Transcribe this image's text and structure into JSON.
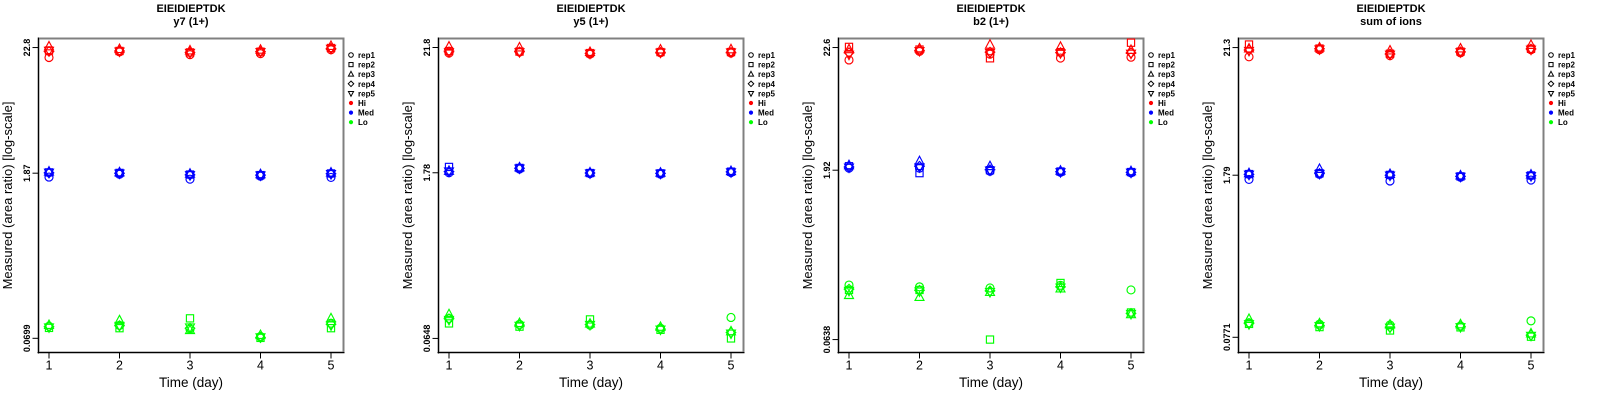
{
  "figure": {
    "background": "#ffffff",
    "box_color": "#808080",
    "axis_color": "#000000"
  },
  "legend": {
    "reps": [
      {
        "label": "rep1",
        "symbol": "circle"
      },
      {
        "label": "rep2",
        "symbol": "square"
      },
      {
        "label": "rep3",
        "symbol": "triangle-up"
      },
      {
        "label": "rep4",
        "symbol": "diamond"
      },
      {
        "label": "rep5",
        "symbol": "triangle-down"
      }
    ],
    "levels": [
      {
        "label": "Hi",
        "color": "#FF0000"
      },
      {
        "label": "Med",
        "color": "#0000FF"
      },
      {
        "label": "Lo",
        "color": "#00FF00"
      }
    ]
  },
  "chart_data": [
    {
      "type": "scatter",
      "title": "EIEIDIEPTDK",
      "subtitle": "y7 (1+)",
      "xlabel": "Time (day)",
      "ylabel": "Measured (area ratio) [log-scale]",
      "x": [
        1,
        2,
        3,
        4,
        5
      ],
      "xticklabels": [
        "1",
        "2",
        "3",
        "4",
        "5"
      ],
      "yticks": [
        22.8,
        1.87,
        0.0699
      ],
      "ytick_labels": [
        "22.8",
        "1.87",
        "0.0699"
      ],
      "ylim": [
        0.0527,
        27.3
      ],
      "yscale": "log",
      "legend_position": "right",
      "grid": false,
      "series": [
        {
          "name": "Hi",
          "color": "#FF0000",
          "days": [
            [
              18.7,
              21.5,
              23.3,
              21.1,
              21.4
            ],
            [
              20.9,
              21.3,
              22.1,
              21.3,
              21.1
            ],
            [
              19.8,
              20.7,
              21.5,
              20.7,
              20.5
            ],
            [
              20.2,
              21.0,
              21.8,
              21.0,
              20.9
            ],
            [
              21.8,
              22.6,
              23.5,
              22.4,
              22.3
            ]
          ]
        },
        {
          "name": "Med",
          "color": "#0000FF",
          "days": [
            [
              1.73,
              1.9,
              1.93,
              1.88,
              1.89
            ],
            [
              1.83,
              1.88,
              1.9,
              1.87,
              1.86
            ],
            [
              1.66,
              1.82,
              1.85,
              1.81,
              1.8
            ],
            [
              1.76,
              1.8,
              1.83,
              1.8,
              1.79
            ],
            [
              1.72,
              1.86,
              1.89,
              1.85,
              1.84
            ]
          ]
        },
        {
          "name": "Lo",
          "color": "#00FF00",
          "days": [
            [
              0.089,
              0.086,
              0.091,
              0.088,
              0.087
            ],
            [
              0.0905,
              0.0855,
              0.1,
              0.09,
              0.0895
            ],
            [
              0.0838,
              0.104,
              0.0822,
              0.0855,
              0.087
            ],
            [
              0.0725,
              0.0705,
              0.0745,
              0.071,
              0.0715
            ],
            [
              0.0945,
              0.0855,
              0.104,
              0.0925,
              0.0905
            ]
          ]
        }
      ]
    },
    {
      "type": "scatter",
      "title": "EIEIDIEPTDK",
      "subtitle": "y5 (1+)",
      "xlabel": "Time (day)",
      "ylabel": "Measured (area ratio) [log-scale]",
      "x": [
        1,
        2,
        3,
        4,
        5
      ],
      "xticklabels": [
        "1",
        "2",
        "3",
        "4",
        "5"
      ],
      "yticks": [
        21.8,
        1.78,
        0.0648
      ],
      "ytick_labels": [
        "21.8",
        "1.78",
        "0.0648"
      ],
      "ylim": [
        0.0489,
        26.1
      ],
      "yscale": "log",
      "legend_position": "right",
      "grid": false,
      "series": [
        {
          "name": "Hi",
          "color": "#FF0000",
          "days": [
            [
              19.5,
              20.3,
              22.2,
              20.0,
              19.9
            ],
            [
              19.9,
              20.1,
              21.8,
              20.0,
              19.9
            ],
            [
              19.1,
              19.5,
              19.9,
              19.4,
              19.3
            ],
            [
              19.6,
              19.9,
              20.9,
              19.8,
              19.7
            ],
            [
              19.5,
              19.9,
              21.0,
              19.8,
              19.8
            ]
          ]
        },
        {
          "name": "Med",
          "color": "#0000FF",
          "days": [
            [
              1.78,
              2.0,
              1.85,
              1.82,
              1.83
            ],
            [
              1.92,
              1.96,
              1.98,
              1.95,
              1.94
            ],
            [
              1.75,
              1.77,
              1.79,
              1.77,
              1.76
            ],
            [
              1.73,
              1.76,
              1.78,
              1.76,
              1.75
            ],
            [
              1.79,
              1.82,
              1.84,
              1.81,
              1.8
            ]
          ]
        },
        {
          "name": "Lo",
          "color": "#00FF00",
          "days": [
            [
              0.0965,
              0.0875,
              0.105,
              0.096,
              0.094
            ],
            [
              0.086,
              0.082,
              0.088,
              0.0845,
              0.0835
            ],
            [
              0.0845,
              0.0948,
              0.087,
              0.0855,
              0.085
            ],
            [
              0.0795,
              0.077,
              0.0815,
              0.078,
              0.0775
            ],
            [
              0.0985,
              0.0648,
              0.0745,
              0.073,
              0.0715
            ]
          ]
        }
      ]
    },
    {
      "type": "scatter",
      "title": "EIEIDIEPTDK",
      "subtitle": "b2 (1+)",
      "xlabel": "Time (day)",
      "ylabel": "Measured (area ratio) [log-scale]",
      "x": [
        1,
        2,
        3,
        4,
        5
      ],
      "xticklabels": [
        "1",
        "2",
        "3",
        "4",
        "5"
      ],
      "yticks": [
        22.6,
        1.92,
        0.0638
      ],
      "ytick_labels": [
        "22.6",
        "1.92",
        "0.0638"
      ],
      "ylim": [
        0.0492,
        27.1
      ],
      "yscale": "log",
      "legend_position": "right",
      "grid": false,
      "series": [
        {
          "name": "Hi",
          "color": "#FF0000",
          "days": [
            [
              17.6,
              22.9,
              21.8,
              20.4,
              19.6
            ],
            [
              20.9,
              21.7,
              22.2,
              21.3,
              21.1
            ],
            [
              19.8,
              18.2,
              23.9,
              20.6,
              20.3
            ],
            [
              18.3,
              20.6,
              22.9,
              20.4,
              20.2
            ],
            [
              18.6,
              24.9,
              21.5,
              20.3,
              20.0
            ]
          ]
        },
        {
          "name": "Med",
          "color": "#0000FF",
          "days": [
            [
              2.0,
              2.08,
              2.12,
              2.05,
              2.03
            ],
            [
              2.0,
              1.81,
              2.3,
              2.08,
              2.04
            ],
            [
              1.88,
              1.92,
              2.08,
              1.94,
              1.91
            ],
            [
              1.84,
              1.87,
              1.9,
              1.86,
              1.85
            ],
            [
              1.82,
              1.85,
              1.88,
              1.84,
              1.83
            ]
          ]
        },
        {
          "name": "Lo",
          "color": "#00FF00",
          "days": [
            [
              0.191,
              0.173,
              0.156,
              0.176,
              0.17
            ],
            [
              0.184,
              0.173,
              0.15,
              0.172,
              0.168
            ],
            [
              0.18,
              0.0638,
              0.166,
              0.17,
              0.166
            ],
            [
              0.19,
              0.199,
              0.178,
              0.184,
              0.182
            ],
            [
              0.173,
              0.11,
              0.106,
              0.108,
              0.107
            ]
          ]
        }
      ]
    },
    {
      "type": "scatter",
      "title": "EIEIDIEPTDK",
      "subtitle": "sum of ions",
      "xlabel": "Time (day)",
      "ylabel": "Measured (area ratio) [log-scale]",
      "x": [
        1,
        2,
        3,
        4,
        5
      ],
      "xticklabels": [
        "1",
        "2",
        "3",
        "4",
        "5"
      ],
      "yticks": [
        21.3,
        1.79,
        0.0771
      ],
      "ytick_labels": [
        "21.3",
        "1.79",
        "0.0771"
      ],
      "ylim": [
        0.0574,
        25.4
      ],
      "yscale": "log",
      "legend_position": "right",
      "grid": false,
      "series": [
        {
          "name": "Hi",
          "color": "#FF0000",
          "days": [
            [
              17.8,
              22.6,
              20.9,
              20.3,
              20.0
            ],
            [
              20.4,
              20.9,
              21.3,
              20.8,
              20.6
            ],
            [
              18.2,
              18.9,
              20.1,
              18.8,
              18.6
            ],
            [
              19.2,
              19.7,
              20.9,
              19.6,
              19.5
            ],
            [
              20.4,
              20.8,
              22.4,
              20.7,
              20.5
            ]
          ]
        },
        {
          "name": "Med",
          "color": "#0000FF",
          "days": [
            [
              1.65,
              1.83,
              1.86,
              1.82,
              1.81
            ],
            [
              1.82,
              1.86,
              2.02,
              1.85,
              1.84
            ],
            [
              1.6,
              1.8,
              1.83,
              1.79,
              1.78
            ],
            [
              1.72,
              1.75,
              1.78,
              1.75,
              1.74
            ],
            [
              1.63,
              1.78,
              1.81,
              1.77,
              1.76
            ]
          ]
        },
        {
          "name": "Lo",
          "color": "#00FF00",
          "days": [
            [
              0.102,
              0.1,
              0.11,
              0.101,
              0.0995
            ],
            [
              0.0995,
              0.094,
              0.101,
              0.097,
              0.096
            ],
            [
              0.098,
              0.088,
              0.0985,
              0.094,
              0.093
            ],
            [
              0.096,
              0.0935,
              0.099,
              0.095,
              0.094
            ],
            [
              0.106,
              0.078,
              0.083,
              0.0805,
              0.0795
            ]
          ]
        }
      ]
    }
  ]
}
